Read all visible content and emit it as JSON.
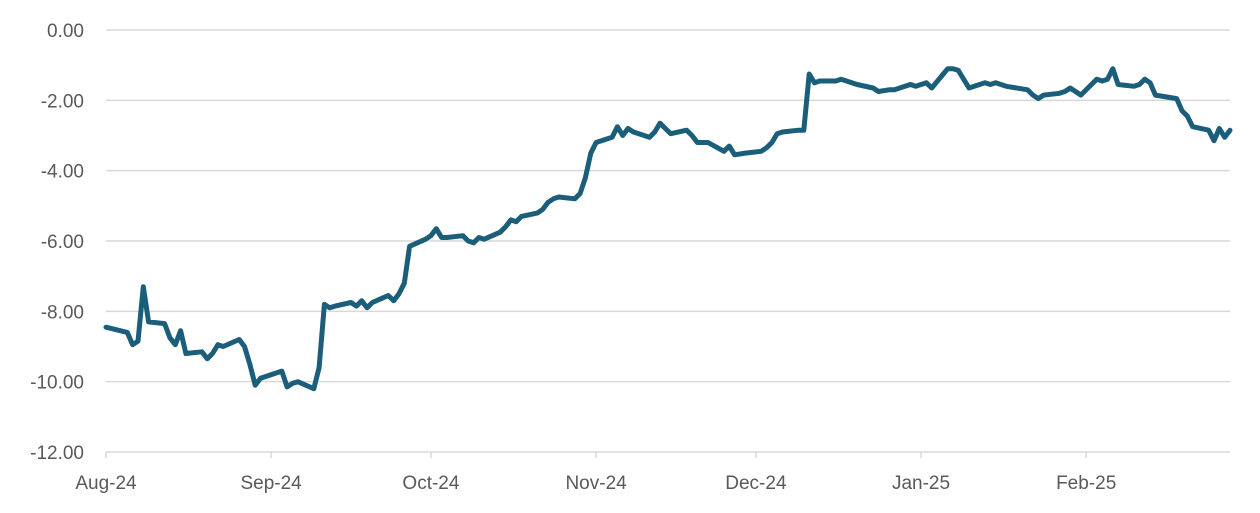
{
  "chart_data": {
    "type": "line",
    "title": "",
    "xlabel": "",
    "ylabel": "",
    "ylim": [
      -12,
      0
    ],
    "y_ticks": [
      "0.00",
      "-2.00",
      "-4.00",
      "-6.00",
      "-8.00",
      "-10.00",
      "-12.00"
    ],
    "x_ticks": [
      "Aug-24",
      "Sep-24",
      "Oct-24",
      "Nov-24",
      "Dec-24",
      "Jan-25",
      "Feb-25"
    ],
    "grid": true,
    "legend": "none",
    "line_color": "#1b5e7a",
    "series": [
      {
        "x": [
          "2024-08-01",
          "2024-08-05",
          "2024-08-06",
          "2024-08-07",
          "2024-08-08",
          "2024-08-09",
          "2024-08-12",
          "2024-08-13",
          "2024-08-14",
          "2024-08-15",
          "2024-08-16",
          "2024-08-19",
          "2024-08-20",
          "2024-08-21",
          "2024-08-22",
          "2024-08-23",
          "2024-08-26",
          "2024-08-27",
          "2024-08-28",
          "2024-08-29",
          "2024-08-30",
          "2024-09-03",
          "2024-09-04",
          "2024-09-05",
          "2024-09-06",
          "2024-09-09",
          "2024-09-10",
          "2024-09-11",
          "2024-09-12",
          "2024-09-13",
          "2024-09-16",
          "2024-09-17",
          "2024-09-18",
          "2024-09-19",
          "2024-09-20",
          "2024-09-23",
          "2024-09-24",
          "2024-09-25",
          "2024-09-26",
          "2024-09-27",
          "2024-09-30",
          "2024-10-01",
          "2024-10-02",
          "2024-10-03",
          "2024-10-04",
          "2024-10-07",
          "2024-10-08",
          "2024-10-09",
          "2024-10-10",
          "2024-10-11",
          "2024-10-14",
          "2024-10-15",
          "2024-10-16",
          "2024-10-17",
          "2024-10-18",
          "2024-10-21",
          "2024-10-22",
          "2024-10-23",
          "2024-10-24",
          "2024-10-25",
          "2024-10-28",
          "2024-10-29",
          "2024-10-30",
          "2024-10-31",
          "2024-11-01",
          "2024-11-04",
          "2024-11-05",
          "2024-11-06",
          "2024-11-07",
          "2024-11-08",
          "2024-11-11",
          "2024-11-12",
          "2024-11-13",
          "2024-11-14",
          "2024-11-15",
          "2024-11-18",
          "2024-11-19",
          "2024-11-20",
          "2024-11-21",
          "2024-11-22",
          "2024-11-25",
          "2024-11-26",
          "2024-11-27",
          "2024-11-29",
          "2024-12-02",
          "2024-12-03",
          "2024-12-04",
          "2024-12-05",
          "2024-12-06",
          "2024-12-09",
          "2024-12-10",
          "2024-12-11",
          "2024-12-12",
          "2024-12-13",
          "2024-12-16",
          "2024-12-17",
          "2024-12-18",
          "2024-12-19",
          "2024-12-20",
          "2024-12-23",
          "2024-12-24",
          "2024-12-26",
          "2024-12-27",
          "2024-12-30",
          "2024-12-31",
          "2025-01-02",
          "2025-01-03",
          "2025-01-06",
          "2025-01-07",
          "2025-01-08",
          "2025-01-10",
          "2025-01-13",
          "2025-01-14",
          "2025-01-15",
          "2025-01-16",
          "2025-01-17",
          "2025-01-21",
          "2025-01-22",
          "2025-01-23",
          "2025-01-24",
          "2025-01-27",
          "2025-01-28",
          "2025-01-29",
          "2025-01-30",
          "2025-01-31",
          "2025-02-03",
          "2025-02-04",
          "2025-02-05",
          "2025-02-06",
          "2025-02-07",
          "2025-02-10",
          "2025-02-11",
          "2025-02-12",
          "2025-02-13",
          "2025-02-14",
          "2025-02-18",
          "2025-02-19",
          "2025-02-20",
          "2025-02-21",
          "2025-02-24",
          "2025-02-25",
          "2025-02-26",
          "2025-02-27",
          "2025-02-28"
        ],
        "y": [
          -8.45,
          -8.6,
          -8.95,
          -8.85,
          -7.3,
          -8.3,
          -8.35,
          -8.75,
          -8.95,
          -8.55,
          -9.2,
          -9.15,
          -9.35,
          -9.2,
          -8.95,
          -9.0,
          -8.8,
          -9.0,
          -9.5,
          -10.1,
          -9.9,
          -9.7,
          -10.15,
          -10.05,
          -10.0,
          -10.2,
          -9.6,
          -7.8,
          -7.9,
          -7.85,
          -7.75,
          -7.85,
          -7.7,
          -7.9,
          -7.75,
          -7.55,
          -7.7,
          -7.5,
          -7.2,
          -6.15,
          -5.95,
          -5.85,
          -5.65,
          -5.9,
          -5.9,
          -5.85,
          -6.0,
          -6.05,
          -5.9,
          -5.95,
          -5.75,
          -5.6,
          -5.4,
          -5.45,
          -5.3,
          -5.2,
          -5.1,
          -4.9,
          -4.8,
          -4.75,
          -4.8,
          -4.65,
          -4.2,
          -3.5,
          -3.2,
          -3.05,
          -2.75,
          -3.0,
          -2.8,
          -2.9,
          -3.05,
          -2.9,
          -2.65,
          -2.8,
          -2.95,
          -2.85,
          -3.0,
          -3.2,
          -3.2,
          -3.2,
          -3.45,
          -3.3,
          -3.55,
          -3.5,
          -3.45,
          -3.35,
          -3.2,
          -2.95,
          -2.9,
          -2.85,
          -2.85,
          -1.25,
          -1.5,
          -1.45,
          -1.45,
          -1.4,
          -1.45,
          -1.5,
          -1.55,
          -1.65,
          -1.75,
          -1.7,
          -1.7,
          -1.55,
          -1.6,
          -1.5,
          -1.65,
          -1.1,
          -1.1,
          -1.15,
          -1.65,
          -1.5,
          -1.55,
          -1.5,
          -1.55,
          -1.6,
          -1.7,
          -1.85,
          -1.95,
          -1.85,
          -1.8,
          -1.75,
          -1.65,
          -1.75,
          -1.85,
          -1.4,
          -1.45,
          -1.4,
          -1.1,
          -1.55,
          -1.6,
          -1.55,
          -1.4,
          -1.5,
          -1.85,
          -1.95,
          -2.3,
          -2.45,
          -2.75,
          -2.85,
          -3.15,
          -2.8,
          -3.05,
          -2.85
        ]
      }
    ]
  }
}
